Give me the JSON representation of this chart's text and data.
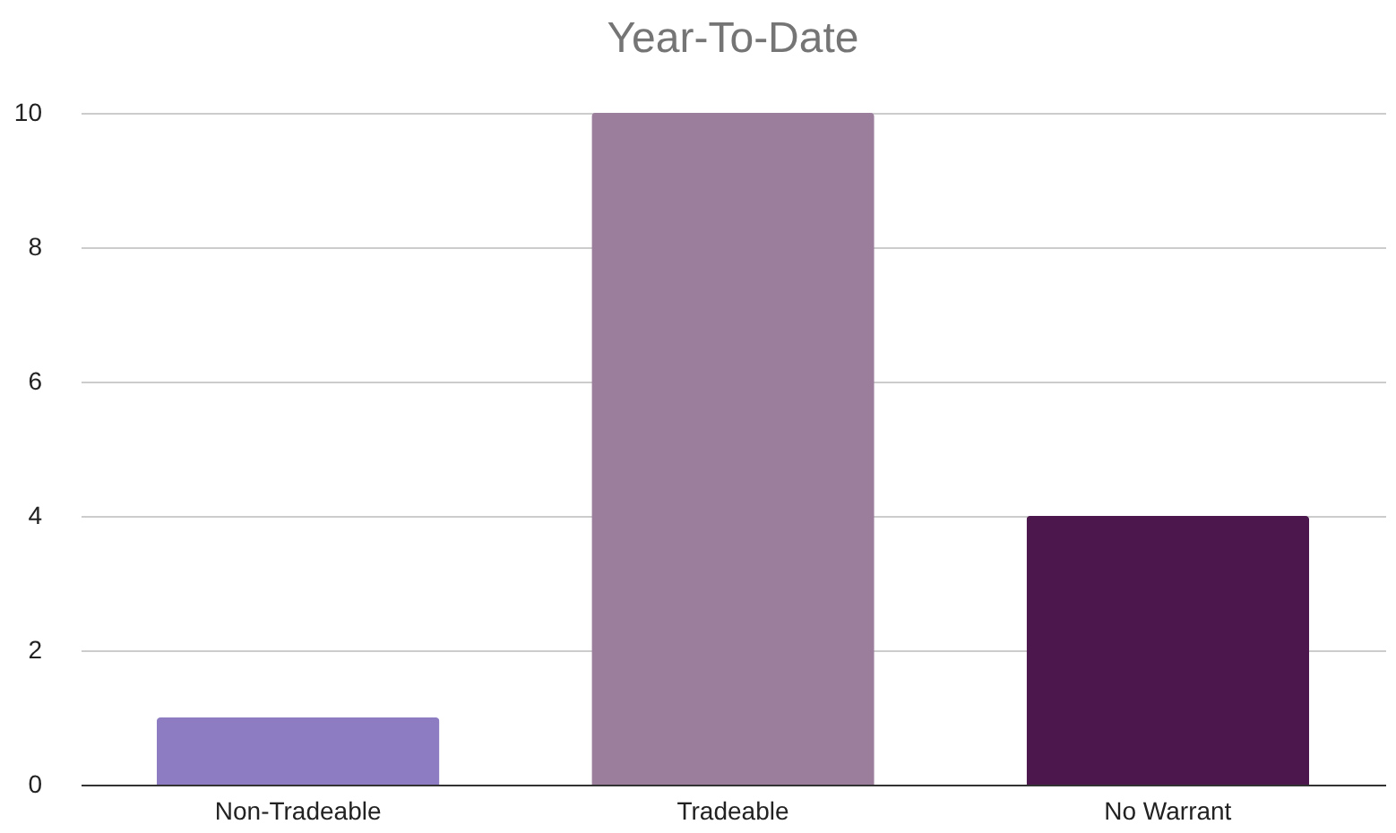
{
  "chart_data": {
    "type": "bar",
    "title": "Year-To-Date",
    "categories": [
      "Non-Tradeable",
      "Tradeable",
      "No Warrant"
    ],
    "values": [
      1,
      10,
      4
    ],
    "colors": [
      "#8e7cc3",
      "#9b7e9b",
      "#4c174c"
    ],
    "ylim": [
      0,
      10
    ],
    "yticks": [
      0,
      2,
      4,
      6,
      8,
      10
    ],
    "grid": "y"
  }
}
